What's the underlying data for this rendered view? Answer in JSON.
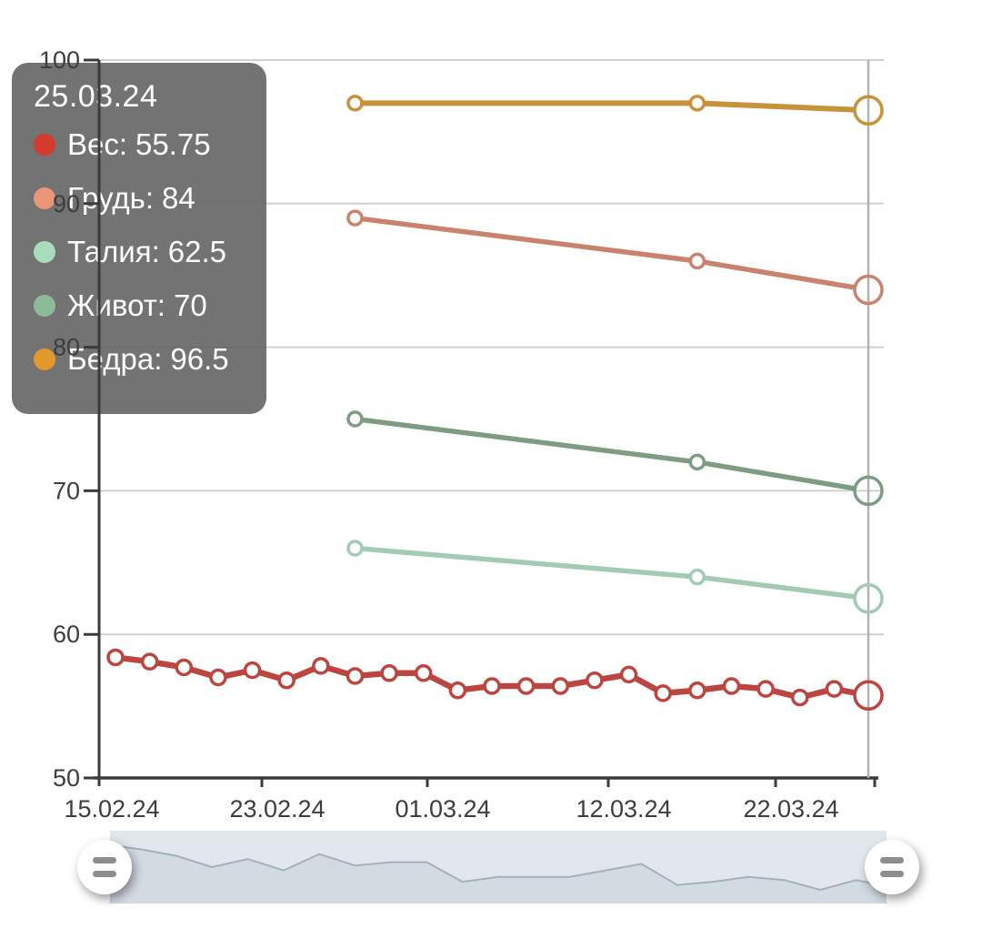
{
  "tooltip": {
    "date": "25.03.24",
    "background": "#646464",
    "rows": [
      {
        "key": "ves",
        "label": "Вес:",
        "value": "55.75",
        "color": "#d23b2e"
      },
      {
        "key": "grud",
        "label": "Грудь:",
        "value": "84",
        "color": "#ea9577"
      },
      {
        "key": "taliya",
        "label": "Талия:",
        "value": "62.5",
        "color": "#a8dcbd"
      },
      {
        "key": "zhivot",
        "label": "Живот:",
        "value": "70",
        "color": "#8fba97"
      },
      {
        "key": "bedra",
        "label": "Бедра:",
        "value": "96.5",
        "color": "#e2992c"
      }
    ]
  },
  "axes": {
    "y_tick_labels": [
      "100",
      "90",
      "80",
      "70",
      "60",
      "50"
    ],
    "x_tick_labels": [
      "15.02.24",
      "23.02.24",
      "01.03.24",
      "12.03.24",
      "22.03.24"
    ]
  },
  "chart_data": {
    "type": "line",
    "title": "",
    "xlabel": "",
    "ylabel": "",
    "ylim": [
      50,
      100
    ],
    "grid": "horizontal",
    "legend_position": "tooltip-top-left",
    "cursor_date": "25.03.24",
    "x_tick_labels": [
      "15.02.24",
      "23.02.24",
      "01.03.24",
      "12.03.24",
      "22.03.24"
    ],
    "series": [
      {
        "key": "ves",
        "name": "Вес",
        "color": "#bc4540",
        "x_index": [
          0,
          1,
          2,
          3,
          4,
          5,
          6,
          7,
          8,
          9,
          10,
          11,
          12,
          13,
          14,
          15,
          16,
          17,
          18,
          19,
          20,
          21,
          22
        ],
        "values": [
          58.4,
          58.1,
          57.7,
          57.0,
          57.5,
          56.8,
          57.8,
          57.1,
          57.3,
          57.3,
          56.1,
          56.4,
          56.4,
          56.4,
          56.8,
          57.2,
          55.9,
          56.1,
          56.4,
          56.2,
          55.6,
          56.2,
          55.75
        ]
      },
      {
        "key": "grud",
        "name": "Грудь",
        "color": "#c8826e",
        "x_index": [
          7,
          17,
          22
        ],
        "values": [
          89,
          86,
          84
        ]
      },
      {
        "key": "taliya",
        "name": "Талия",
        "color": "#a3cab3",
        "x_index": [
          7,
          17,
          22
        ],
        "values": [
          66,
          64,
          62.5
        ]
      },
      {
        "key": "zhivot",
        "name": "Живот",
        "color": "#7d9c82",
        "x_index": [
          7,
          17,
          22
        ],
        "values": [
          75,
          72,
          70
        ]
      },
      {
        "key": "bedra",
        "name": "Бедра",
        "color": "#c7923a",
        "x_index": [
          7,
          17,
          22
        ],
        "values": [
          97,
          97,
          96.5
        ]
      }
    ]
  },
  "navigator": {
    "band_color": "#e1e7ed",
    "area_fill": "#d2dae2",
    "area_line": "#a6b0bc",
    "handle_icon": "drag-handle-icon",
    "mirrors_series": "Вес"
  }
}
